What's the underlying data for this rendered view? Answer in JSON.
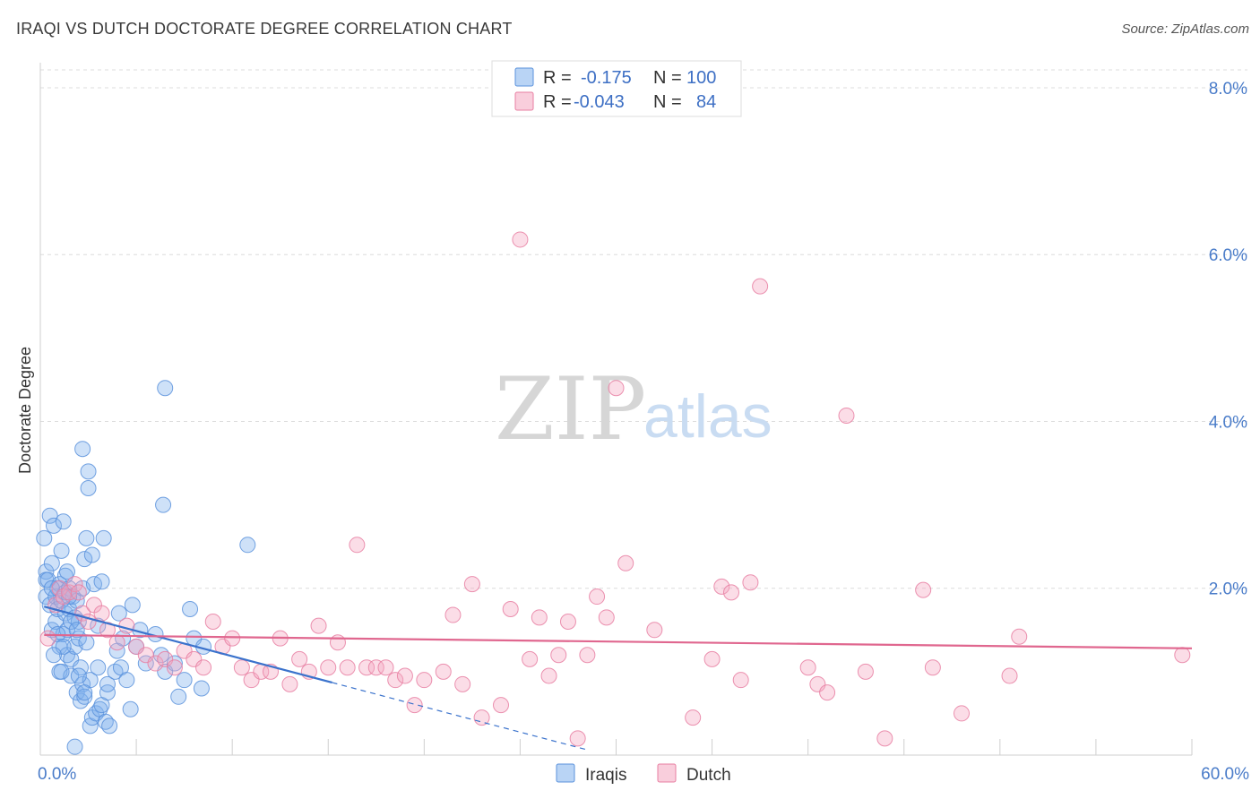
{
  "chart_data": {
    "type": "scatter",
    "title": "IRAQI VS DUTCH DOCTORATE DEGREE CORRELATION CHART",
    "source": "Source: ZipAtlas.com",
    "ylabel": "Doctorate Degree",
    "xlabel": "",
    "xlim": [
      0,
      60
    ],
    "ylim": [
      0,
      8.3
    ],
    "x_tick_labels": [
      {
        "value": 0,
        "label": "0.0%"
      },
      {
        "value": 60,
        "label": "60.0%"
      }
    ],
    "y_tick_labels": [
      {
        "value": 2,
        "label": "2.0%"
      },
      {
        "value": 4,
        "label": "4.0%"
      },
      {
        "value": 6,
        "label": "6.0%"
      },
      {
        "value": 8,
        "label": "8.0%"
      }
    ],
    "grid": "horizontal-dashed",
    "watermark": {
      "zip": "ZIP",
      "atlas": "atlas"
    },
    "legend_stats": [
      {
        "r_label": "R =",
        "r_value": "-0.175",
        "n_label": "N =",
        "n_value": "100",
        "color": "#7fb0ec"
      },
      {
        "r_label": "R =",
        "r_value": "-0.043",
        "n_label": "N =",
        "n_value": "84",
        "color": "#f4a6c0"
      }
    ],
    "series": [
      {
        "name": "Iraqis",
        "color": "#7fb0ec",
        "stroke": "#5a92dc",
        "trend": {
          "x0": 0.2,
          "y0": 1.78,
          "x1": 15.2,
          "y1": 0.87,
          "dash_to_x": 28.5,
          "color": "#3a72cc"
        },
        "points": [
          [
            0.2,
            2.6
          ],
          [
            0.3,
            2.2
          ],
          [
            0.3,
            2.1
          ],
          [
            0.3,
            1.9
          ],
          [
            0.4,
            2.1
          ],
          [
            0.5,
            1.8
          ],
          [
            0.5,
            2.87
          ],
          [
            0.6,
            2.3
          ],
          [
            0.6,
            1.5
          ],
          [
            0.7,
            2.75
          ],
          [
            0.8,
            1.9
          ],
          [
            0.8,
            1.6
          ],
          [
            0.9,
            2.0
          ],
          [
            0.9,
            1.75
          ],
          [
            1.0,
            2.05
          ],
          [
            1.0,
            1.3
          ],
          [
            1.0,
            1.0
          ],
          [
            1.1,
            2.45
          ],
          [
            1.1,
            1.85
          ],
          [
            1.2,
            2.8
          ],
          [
            1.2,
            1.45
          ],
          [
            1.3,
            2.15
          ],
          [
            1.3,
            1.95
          ],
          [
            1.3,
            1.7
          ],
          [
            1.4,
            1.5
          ],
          [
            1.4,
            1.2
          ],
          [
            1.5,
            2.0
          ],
          [
            1.5,
            1.75
          ],
          [
            1.6,
            1.15
          ],
          [
            1.6,
            0.95
          ],
          [
            1.7,
            1.9
          ],
          [
            1.8,
            1.65
          ],
          [
            1.8,
            1.3
          ],
          [
            1.9,
            1.85
          ],
          [
            1.9,
            0.75
          ],
          [
            2.0,
            1.6
          ],
          [
            2.0,
            1.4
          ],
          [
            2.1,
            1.05
          ],
          [
            2.1,
            0.65
          ],
          [
            2.2,
            2.0
          ],
          [
            2.2,
            0.85
          ],
          [
            2.3,
            2.35
          ],
          [
            2.3,
            0.7
          ],
          [
            2.4,
            2.6
          ],
          [
            2.4,
            1.35
          ],
          [
            2.5,
            3.2
          ],
          [
            2.5,
            3.4
          ],
          [
            2.6,
            0.35
          ],
          [
            2.6,
            0.9
          ],
          [
            2.7,
            0.45
          ],
          [
            2.7,
            2.4
          ],
          [
            2.8,
            2.05
          ],
          [
            2.9,
            0.5
          ],
          [
            3.0,
            1.55
          ],
          [
            3.1,
            0.55
          ],
          [
            3.2,
            0.6
          ],
          [
            3.2,
            2.08
          ],
          [
            3.3,
            2.6
          ],
          [
            3.4,
            0.4
          ],
          [
            3.5,
            0.75
          ],
          [
            3.5,
            0.85
          ],
          [
            3.6,
            0.35
          ],
          [
            3.9,
            1.0
          ],
          [
            4.0,
            1.25
          ],
          [
            4.1,
            1.7
          ],
          [
            4.2,
            1.05
          ],
          [
            4.3,
            1.4
          ],
          [
            4.5,
            0.9
          ],
          [
            4.7,
            0.55
          ],
          [
            4.8,
            1.8
          ],
          [
            5.0,
            1.3
          ],
          [
            5.2,
            1.5
          ],
          [
            5.5,
            1.1
          ],
          [
            6.0,
            1.45
          ],
          [
            6.3,
            1.2
          ],
          [
            6.5,
            1.0
          ],
          [
            6.5,
            4.4
          ],
          [
            7.0,
            1.1
          ],
          [
            7.2,
            0.7
          ],
          [
            7.5,
            0.9
          ],
          [
            7.8,
            1.75
          ],
          [
            8.0,
            1.4
          ],
          [
            8.4,
            0.8
          ],
          [
            8.5,
            1.3
          ],
          [
            10.8,
            2.52
          ],
          [
            6.4,
            3.0
          ],
          [
            2.2,
            3.67
          ],
          [
            1.5,
            1.9
          ],
          [
            0.9,
            1.45
          ],
          [
            1.2,
            1.3
          ],
          [
            2.0,
            0.95
          ],
          [
            1.6,
            1.6
          ],
          [
            0.7,
            1.2
          ],
          [
            1.1,
            1.0
          ],
          [
            3.0,
            1.05
          ],
          [
            1.8,
            0.1
          ],
          [
            2.3,
            0.75
          ],
          [
            1.4,
            2.2
          ],
          [
            0.6,
            2.0
          ],
          [
            1.9,
            1.5
          ]
        ]
      },
      {
        "name": "Dutch",
        "color": "#f4a6c0",
        "stroke": "#e87fa2",
        "trend": {
          "x0": 0.2,
          "y0": 1.44,
          "x1": 60,
          "y1": 1.28,
          "color": "#e0678f"
        },
        "points": [
          [
            0.4,
            1.4
          ],
          [
            0.8,
            1.8
          ],
          [
            1.0,
            2.0
          ],
          [
            1.2,
            1.9
          ],
          [
            1.5,
            1.95
          ],
          [
            1.8,
            2.05
          ],
          [
            2.0,
            1.95
          ],
          [
            2.2,
            1.7
          ],
          [
            2.5,
            1.6
          ],
          [
            2.8,
            1.8
          ],
          [
            3.2,
            1.7
          ],
          [
            3.5,
            1.5
          ],
          [
            4.0,
            1.35
          ],
          [
            4.5,
            1.55
          ],
          [
            5.0,
            1.3
          ],
          [
            5.5,
            1.2
          ],
          [
            6.0,
            1.1
          ],
          [
            6.5,
            1.15
          ],
          [
            7.0,
            1.05
          ],
          [
            7.5,
            1.25
          ],
          [
            8.0,
            1.15
          ],
          [
            8.5,
            1.05
          ],
          [
            9.0,
            1.6
          ],
          [
            9.5,
            1.3
          ],
          [
            10.0,
            1.4
          ],
          [
            10.5,
            1.05
          ],
          [
            11.0,
            0.9
          ],
          [
            11.5,
            1.0
          ],
          [
            12.0,
            1.0
          ],
          [
            12.5,
            1.4
          ],
          [
            13.0,
            0.85
          ],
          [
            13.5,
            1.15
          ],
          [
            14.0,
            1.0
          ],
          [
            14.5,
            1.55
          ],
          [
            15.0,
            1.05
          ],
          [
            15.5,
            1.35
          ],
          [
            16.0,
            1.05
          ],
          [
            16.5,
            2.52
          ],
          [
            17.0,
            1.05
          ],
          [
            17.5,
            1.05
          ],
          [
            18.0,
            1.05
          ],
          [
            18.5,
            0.9
          ],
          [
            19.0,
            0.95
          ],
          [
            19.5,
            0.6
          ],
          [
            20.0,
            0.9
          ],
          [
            21.0,
            1.0
          ],
          [
            21.5,
            1.68
          ],
          [
            22.0,
            0.85
          ],
          [
            22.5,
            2.05
          ],
          [
            23.0,
            0.45
          ],
          [
            24.0,
            0.6
          ],
          [
            24.5,
            1.75
          ],
          [
            25.0,
            6.18
          ],
          [
            25.5,
            1.15
          ],
          [
            26.0,
            1.65
          ],
          [
            26.5,
            0.95
          ],
          [
            27.0,
            1.2
          ],
          [
            27.5,
            1.6
          ],
          [
            28.0,
            0.2
          ],
          [
            28.5,
            1.2
          ],
          [
            29.0,
            1.9
          ],
          [
            29.5,
            1.65
          ],
          [
            30.0,
            4.4
          ],
          [
            30.5,
            2.3
          ],
          [
            32.0,
            1.5
          ],
          [
            34.0,
            0.45
          ],
          [
            35.0,
            1.15
          ],
          [
            35.5,
            2.02
          ],
          [
            36.0,
            1.95
          ],
          [
            36.5,
            0.9
          ],
          [
            37.0,
            2.07
          ],
          [
            37.5,
            5.62
          ],
          [
            40.0,
            1.05
          ],
          [
            40.5,
            0.85
          ],
          [
            41.0,
            0.75
          ],
          [
            42.0,
            4.07
          ],
          [
            43.0,
            1.0
          ],
          [
            44.0,
            0.2
          ],
          [
            46.0,
            1.98
          ],
          [
            46.5,
            1.05
          ],
          [
            48.0,
            0.5
          ],
          [
            50.5,
            0.95
          ],
          [
            51.0,
            1.42
          ],
          [
            59.5,
            1.2
          ]
        ]
      }
    ],
    "bottom_legend": [
      "Iraqis",
      "Dutch"
    ]
  }
}
